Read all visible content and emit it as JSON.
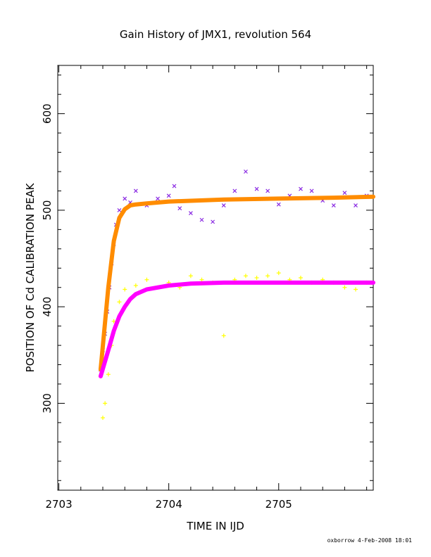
{
  "chart_data": {
    "type": "scatter",
    "title": "Gain History of JMX1, revolution 564",
    "xlabel": "TIME IN IJD",
    "ylabel": "POSITION OF Cd CALIBRATION PEAK",
    "footer": "oxborrow  4-Feb-2008 18:01",
    "xlim": [
      2702.99,
      2705.86
    ],
    "ylim": [
      210,
      650
    ],
    "x_ticks": [
      2703,
      2704,
      2705
    ],
    "y_ticks": [
      300,
      400,
      500,
      600
    ],
    "grid": false,
    "colors": {
      "scatter_high": "#8a2be2",
      "scatter_low": "#ffff00",
      "fit_high": "#ff8c00",
      "fit_low": "#ff00ff"
    },
    "series": [
      {
        "kind": "scatter",
        "marker": "x",
        "color": "#8a2be2",
        "points": [
          [
            2703.38,
            335
          ],
          [
            2703.4,
            355
          ],
          [
            2703.42,
            372
          ],
          [
            2703.44,
            395
          ],
          [
            2703.46,
            420
          ],
          [
            2703.48,
            445
          ],
          [
            2703.5,
            465
          ],
          [
            2703.52,
            485
          ],
          [
            2703.55,
            500
          ],
          [
            2703.6,
            512
          ],
          [
            2703.65,
            508
          ],
          [
            2703.7,
            520
          ],
          [
            2703.8,
            505
          ],
          [
            2703.9,
            512
          ],
          [
            2704.0,
            515
          ],
          [
            2704.05,
            525
          ],
          [
            2704.1,
            502
          ],
          [
            2704.2,
            497
          ],
          [
            2704.3,
            490
          ],
          [
            2704.4,
            488
          ],
          [
            2704.5,
            505
          ],
          [
            2704.6,
            520
          ],
          [
            2704.7,
            540
          ],
          [
            2704.8,
            522
          ],
          [
            2704.9,
            520
          ],
          [
            2705.0,
            506
          ],
          [
            2705.1,
            515
          ],
          [
            2705.2,
            522
          ],
          [
            2705.3,
            520
          ],
          [
            2705.4,
            510
          ],
          [
            2705.5,
            505
          ],
          [
            2705.6,
            518
          ],
          [
            2705.7,
            505
          ],
          [
            2705.8,
            515
          ]
        ]
      },
      {
        "kind": "scatter",
        "marker": "+",
        "color": "#ffff00",
        "points": [
          [
            2703.4,
            285
          ],
          [
            2703.42,
            300
          ],
          [
            2703.45,
            330
          ],
          [
            2703.48,
            360
          ],
          [
            2703.5,
            385
          ],
          [
            2703.55,
            405
          ],
          [
            2703.6,
            418
          ],
          [
            2703.7,
            422
          ],
          [
            2703.8,
            428
          ],
          [
            2703.9,
            420
          ],
          [
            2704.0,
            425
          ],
          [
            2704.1,
            420
          ],
          [
            2704.2,
            432
          ],
          [
            2704.3,
            428
          ],
          [
            2704.4,
            425
          ],
          [
            2704.5,
            370
          ],
          [
            2704.6,
            428
          ],
          [
            2704.7,
            432
          ],
          [
            2704.8,
            430
          ],
          [
            2704.9,
            432
          ],
          [
            2705.0,
            435
          ],
          [
            2705.1,
            428
          ],
          [
            2705.2,
            430
          ],
          [
            2705.3,
            425
          ],
          [
            2705.4,
            428
          ],
          [
            2705.5,
            425
          ],
          [
            2705.6,
            420
          ],
          [
            2705.7,
            418
          ],
          [
            2705.8,
            425
          ]
        ]
      },
      {
        "kind": "fit",
        "color": "#ff8c00",
        "x": [
          2703.38,
          2703.45,
          2703.5,
          2703.55,
          2703.6,
          2703.65,
          2703.7,
          2703.8,
          2704.0,
          2704.5,
          2705.0,
          2705.5,
          2705.86
        ],
        "y": [
          335,
          420,
          468,
          492,
          501,
          505,
          506,
          507,
          509,
          511,
          512,
          513,
          514
        ]
      },
      {
        "kind": "fit",
        "color": "#ff00ff",
        "x": [
          2703.38,
          2703.45,
          2703.5,
          2703.55,
          2703.6,
          2703.65,
          2703.7,
          2703.8,
          2704.0,
          2704.2,
          2704.5,
          2705.0,
          2705.5,
          2705.86
        ],
        "y": [
          328,
          355,
          375,
          390,
          400,
          408,
          413,
          418,
          422,
          424,
          425,
          425,
          425,
          425
        ]
      }
    ]
  }
}
